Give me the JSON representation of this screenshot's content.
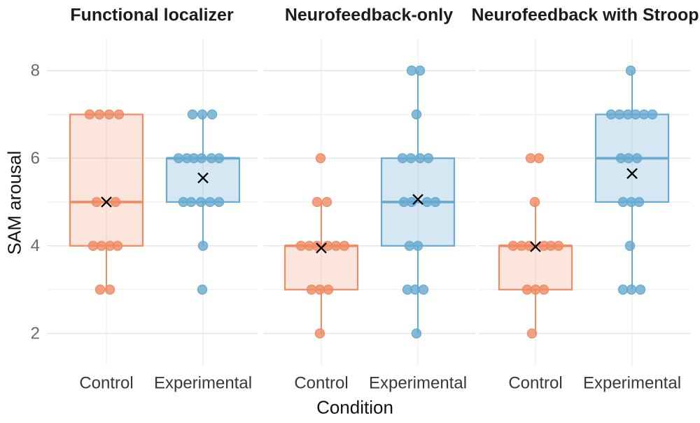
{
  "chart_data": {
    "type": "boxplot",
    "title": "",
    "xlabel": "Condition",
    "ylabel": "SAM arousal",
    "y_axis": {
      "ticks": [
        2,
        4,
        6,
        8
      ],
      "minor_gridlines": [
        3,
        5,
        7
      ],
      "range": [
        2,
        8
      ]
    },
    "categories": [
      "Control",
      "Experimental"
    ],
    "points_format": "[sam_arousal_value, x_jitter_px]",
    "colors": {
      "control": {
        "stroke": "#EF8A62",
        "fill": "rgba(239,138,98,0.22)"
      },
      "experimental": {
        "stroke": "#67A9CF",
        "fill": "rgba(103,169,207,0.28)"
      },
      "mean_marker": "#000000",
      "gridline_major": "#E4E4E4",
      "gridline_minor": "#EDEDED",
      "gridline_vertical": "#ECECEC",
      "y_tick_text": "#6A6A6A",
      "x_tick_text": "#383838"
    },
    "facets": [
      {
        "label": "Functional localizer",
        "groups": [
          {
            "category": "Control",
            "palette": "control",
            "box": {
              "q1": 4,
              "median": 5,
              "q3": 7,
              "whisker_low": 3,
              "whisker_high": 7
            },
            "mean": 5.0,
            "points": [
              [
                7,
                -24
              ],
              [
                7,
                -10
              ],
              [
                7,
                4
              ],
              [
                7,
                18
              ],
              [
                5,
                -14
              ],
              [
                5,
                13
              ],
              [
                4,
                -19
              ],
              [
                4,
                -7
              ],
              [
                4,
                5
              ],
              [
                4,
                16
              ],
              [
                3,
                -9
              ],
              [
                3,
                5
              ]
            ]
          },
          {
            "category": "Experimental",
            "palette": "experimental",
            "box": {
              "q1": 5,
              "median": 6,
              "q3": 6,
              "whisker_low": 4,
              "whisker_high": 7
            },
            "mean": 5.55,
            "points": [
              [
                7,
                -15
              ],
              [
                7,
                -1
              ],
              [
                7,
                13
              ],
              [
                6,
                -35
              ],
              [
                6,
                -23
              ],
              [
                6,
                -13
              ],
              [
                6,
                -2
              ],
              [
                6,
                12
              ],
              [
                6,
                23
              ],
              [
                5,
                -28
              ],
              [
                5,
                -17
              ],
              [
                5,
                -3
              ],
              [
                5,
                10
              ],
              [
                5,
                23
              ],
              [
                4,
                0
              ],
              [
                3,
                -1
              ]
            ]
          }
        ]
      },
      {
        "label": "Neurofeedback-only",
        "groups": [
          {
            "category": "Control",
            "palette": "control",
            "box": {
              "q1": 3,
              "median": 4,
              "q3": 4,
              "whisker_low": 2,
              "whisker_high": 5
            },
            "mean": 3.95,
            "points": [
              [
                6,
                -1
              ],
              [
                5,
                -6
              ],
              [
                5,
                8
              ],
              [
                4,
                -29
              ],
              [
                4,
                -17
              ],
              [
                4,
                -6
              ],
              [
                4,
                9
              ],
              [
                4,
                21
              ],
              [
                4,
                33
              ],
              [
                3,
                -14
              ],
              [
                3,
                -2
              ],
              [
                3,
                10
              ],
              [
                2,
                -2
              ]
            ]
          },
          {
            "category": "Experimental",
            "palette": "experimental",
            "box": {
              "q1": 4,
              "median": 5,
              "q3": 6,
              "whisker_low": 2,
              "whisker_high": 8
            },
            "mean": 5.06,
            "points": [
              [
                8,
                -9
              ],
              [
                8,
                3
              ],
              [
                7,
                -2
              ],
              [
                6,
                -22
              ],
              [
                6,
                -10
              ],
              [
                6,
                3
              ],
              [
                6,
                15
              ],
              [
                5,
                -20
              ],
              [
                5,
                -9
              ],
              [
                5,
                13
              ],
              [
                5,
                25
              ],
              [
                4,
                -12
              ],
              [
                4,
                0
              ],
              [
                3,
                -15
              ],
              [
                3,
                -4
              ],
              [
                3,
                8
              ],
              [
                2,
                -2
              ]
            ]
          }
        ]
      },
      {
        "label": "Neurofeedback with Stroop",
        "groups": [
          {
            "category": "Control",
            "palette": "control",
            "box": {
              "q1": 3,
              "median": 4,
              "q3": 4,
              "whisker_low": 2,
              "whisker_high": 5
            },
            "mean": 3.98,
            "points": [
              [
                6,
                -7
              ],
              [
                6,
                5
              ],
              [
                5,
                -1
              ],
              [
                4,
                -32
              ],
              [
                4,
                -20
              ],
              [
                4,
                -9
              ],
              [
                4,
                12
              ],
              [
                4,
                22
              ],
              [
                4,
                33
              ],
              [
                3,
                -12
              ],
              [
                3,
                0
              ],
              [
                3,
                12
              ],
              [
                2,
                -5
              ]
            ]
          },
          {
            "category": "Experimental",
            "palette": "experimental",
            "box": {
              "q1": 5,
              "median": 6,
              "q3": 7,
              "whisker_low": 3,
              "whisker_high": 8
            },
            "mean": 5.65,
            "points": [
              [
                8,
                -2
              ],
              [
                7,
                -30
              ],
              [
                7,
                -18
              ],
              [
                7,
                -6
              ],
              [
                7,
                5
              ],
              [
                7,
                17
              ],
              [
                7,
                29
              ],
              [
                6,
                -16
              ],
              [
                6,
                -5
              ],
              [
                6,
                7
              ],
              [
                5,
                -13
              ],
              [
                5,
                -1
              ],
              [
                5,
                10
              ],
              [
                4,
                -3
              ],
              [
                3,
                -13
              ],
              [
                3,
                -1
              ],
              [
                3,
                12
              ]
            ]
          }
        ]
      }
    ]
  }
}
